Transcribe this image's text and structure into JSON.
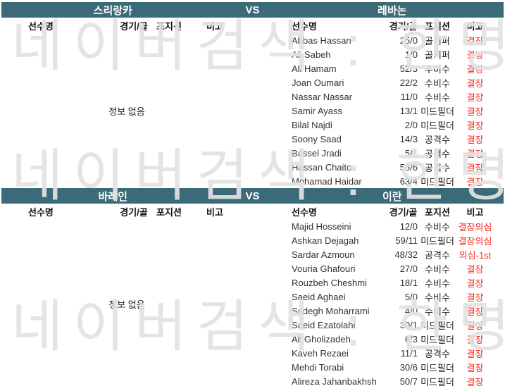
{
  "colors": {
    "bar_bg": "#3b6a78",
    "bar_text": "#ffffff",
    "note_red": "#fa2a1a",
    "watermark": "#e2e2e2"
  },
  "watermark": {
    "text": "네이버검색 : 한명동"
  },
  "sections": [
    {
      "home_team": "스리랑카",
      "vs_label": "VS",
      "away_team": "레바논",
      "columns": {
        "name": "선수명",
        "record": "경기/골",
        "position": "포지션",
        "note": "비고"
      },
      "home_empty": "정보 없음",
      "players": [
        {
          "name": "Abbas Hassan",
          "record": "25/0",
          "position": "골키퍼",
          "note": "결장"
        },
        {
          "name": "Ali Sabeh",
          "record": "1/0",
          "position": "골키퍼",
          "note": "결장"
        },
        {
          "name": "Ali Hamam",
          "record": "52/3",
          "position": "수비수",
          "note": "결장"
        },
        {
          "name": "Joan Oumari",
          "record": "22/2",
          "position": "수비수",
          "note": "결장"
        },
        {
          "name": "Nassar Nassar",
          "record": "11/0",
          "position": "수비수",
          "note": "결장"
        },
        {
          "name": "Samir Ayass",
          "record": "13/1",
          "position": "미드필더",
          "note": "결장"
        },
        {
          "name": "Bilal Najdi",
          "record": "2/0",
          "position": "미드필더",
          "note": "결장"
        },
        {
          "name": "Soony Saad",
          "record": "14/3",
          "position": "공격수",
          "note": "결장"
        },
        {
          "name": "Bassel Jradi",
          "record": "5/1",
          "position": "공격수",
          "note": "결장"
        },
        {
          "name": "Hassan Chaito",
          "record": "55/6",
          "position": "공격수",
          "note": "결장"
        },
        {
          "name": "Mohamad Haidar",
          "record": "63/4",
          "position": "미드필더",
          "note": "결장"
        }
      ]
    },
    {
      "home_team": "바레인",
      "vs_label": "VS",
      "away_team": "이란",
      "columns": {
        "name": "선수명",
        "record": "경기/골",
        "position": "포지션",
        "note": "비고"
      },
      "home_empty": "정보 없음",
      "players": [
        {
          "name": "Majid Hosseini",
          "record": "12/0",
          "position": "수비수",
          "note": "결장의심"
        },
        {
          "name": "Ashkan Dejagah",
          "record": "59/11",
          "position": "미드필더",
          "note": "결장의심"
        },
        {
          "name": "Sardar Azmoun",
          "record": "48/32",
          "position": "공격수",
          "note": "의심-1st"
        },
        {
          "name": "Vouria Ghafouri",
          "record": "27/0",
          "position": "수비수",
          "note": "결장"
        },
        {
          "name": "Rouzbeh Cheshmi",
          "record": "18/1",
          "position": "수비수",
          "note": "결장"
        },
        {
          "name": "Saeid Aghaei",
          "record": "5/0",
          "position": "수비수",
          "note": "결장"
        },
        {
          "name": "Sadegh Moharrami",
          "record": "4/0",
          "position": "수비수",
          "note": "결장"
        },
        {
          "name": "Saeid Ezatolahi",
          "record": "30/1",
          "position": "미드필더",
          "note": "결장"
        },
        {
          "name": "Ali Gholizadeh",
          "record": "6/3",
          "position": "미드필더",
          "note": "결장"
        },
        {
          "name": "Kaveh Rezaei",
          "record": "11/1",
          "position": "공격수",
          "note": "결장"
        },
        {
          "name": "Mehdi Torabi",
          "record": "30/6",
          "position": "미드필더",
          "note": "결장"
        },
        {
          "name": "Alireza Jahanbakhsh",
          "record": "50/7",
          "position": "미드필더",
          "note": "결장"
        }
      ]
    }
  ]
}
